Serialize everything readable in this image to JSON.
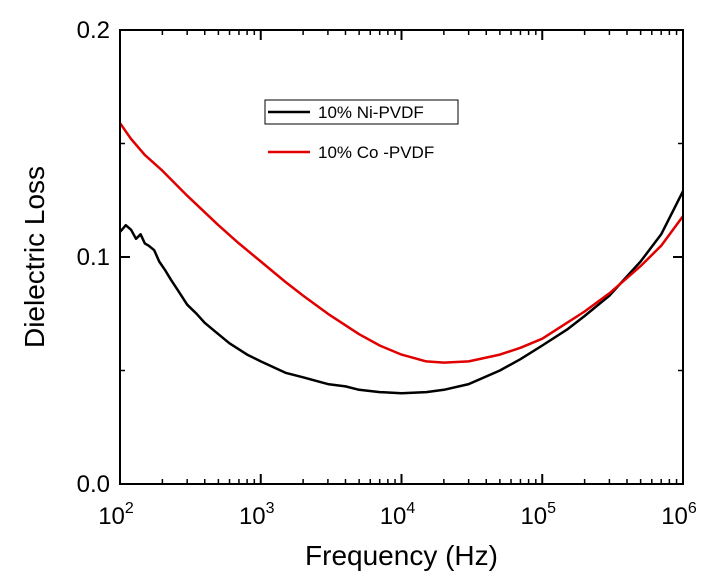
{
  "chart_data": {
    "type": "line",
    "xlabel": "Frequency (Hz)",
    "ylabel": "Dielectric Loss",
    "xscale": "log",
    "xlim": [
      100,
      1000000
    ],
    "ylim": [
      0.0,
      0.2
    ],
    "x_ticks": [
      {
        "value": 100,
        "base": "10",
        "exp": "2"
      },
      {
        "value": 1000,
        "base": "10",
        "exp": "3"
      },
      {
        "value": 10000,
        "base": "10",
        "exp": "4"
      },
      {
        "value": 100000,
        "base": "10",
        "exp": "5"
      },
      {
        "value": 1000000,
        "base": "10",
        "exp": "6"
      }
    ],
    "y_ticks": [
      {
        "value": 0.0,
        "label": "0.0"
      },
      {
        "value": 0.1,
        "label": "0.1"
      },
      {
        "value": 0.2,
        "label": "0.2"
      }
    ],
    "grid": false,
    "legend_position": "top-center",
    "series": [
      {
        "name": "10% Ni-PVDF",
        "color": "#000000",
        "x": [
          100,
          110,
          120,
          130,
          140,
          150,
          160,
          175,
          190,
          210,
          230,
          260,
          300,
          350,
          400,
          500,
          600,
          800,
          1000,
          1500,
          2000,
          3000,
          4000,
          5000,
          7000,
          10000,
          15000,
          20000,
          30000,
          50000,
          70000,
          100000,
          150000,
          200000,
          300000,
          500000,
          700000,
          1000000
        ],
        "y": [
          0.111,
          0.114,
          0.112,
          0.108,
          0.11,
          0.106,
          0.105,
          0.103,
          0.098,
          0.094,
          0.09,
          0.085,
          0.079,
          0.075,
          0.071,
          0.066,
          0.062,
          0.057,
          0.054,
          0.049,
          0.047,
          0.044,
          0.043,
          0.0415,
          0.0405,
          0.04,
          0.0405,
          0.0415,
          0.044,
          0.05,
          0.055,
          0.061,
          0.068,
          0.074,
          0.083,
          0.098,
          0.11,
          0.129
        ]
      },
      {
        "name": "10% Co -PVDF",
        "color": "#e00000",
        "x": [
          100,
          120,
          150,
          200,
          300,
          500,
          700,
          1000,
          1500,
          2000,
          3000,
          5000,
          7000,
          10000,
          15000,
          20000,
          30000,
          50000,
          70000,
          100000,
          150000,
          200000,
          300000,
          500000,
          700000,
          1000000
        ],
        "y": [
          0.159,
          0.152,
          0.145,
          0.138,
          0.127,
          0.114,
          0.106,
          0.098,
          0.089,
          0.083,
          0.075,
          0.066,
          0.061,
          0.057,
          0.054,
          0.0535,
          0.054,
          0.057,
          0.06,
          0.064,
          0.071,
          0.076,
          0.084,
          0.096,
          0.105,
          0.118
        ]
      }
    ]
  }
}
